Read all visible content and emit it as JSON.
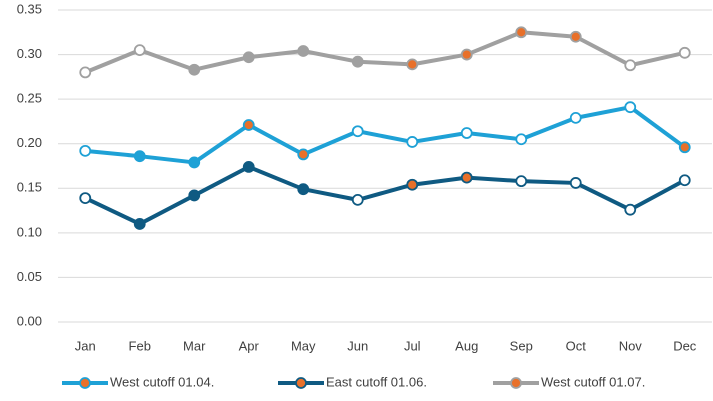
{
  "chart_data": {
    "type": "line",
    "categories": [
      "Jan",
      "Feb",
      "Mar",
      "Apr",
      "May",
      "Jun",
      "Jul",
      "Aug",
      "Sep",
      "Oct",
      "Nov",
      "Dec"
    ],
    "ylim": [
      0,
      0.35
    ],
    "yticks": [
      {
        "value": 0,
        "label": "0.00"
      },
      {
        "value": 0.05,
        "label": "0.05"
      },
      {
        "value": 0.1,
        "label": "0.10"
      },
      {
        "value": 0.15,
        "label": "0.15"
      },
      {
        "value": 0.2,
        "label": "0.20"
      },
      {
        "value": 0.25,
        "label": "0.25"
      },
      {
        "value": 0.3,
        "label": "0.30"
      },
      {
        "value": 0.35,
        "label": "0.35"
      }
    ],
    "grid": true,
    "legend": "bottom",
    "series": [
      {
        "name": "West cutoff 01.04.",
        "color": "#1ea1d6",
        "legend_marker_fill": "#e8702a",
        "values": [
          0.192,
          0.186,
          0.179,
          0.221,
          0.188,
          0.214,
          0.202,
          0.212,
          0.205,
          0.229,
          0.241,
          0.196
        ],
        "marker_fills": [
          "#ffffff",
          "#1ea1d6",
          "#1ea1d6",
          "#e8702a",
          "#e8702a",
          "#ffffff",
          "#ffffff",
          "#ffffff",
          "#ffffff",
          "#ffffff",
          "#ffffff",
          "#e8702a"
        ]
      },
      {
        "name": "East cutoff 01.06.",
        "color": "#0f5a82",
        "legend_marker_fill": "#e8702a",
        "values": [
          0.139,
          0.11,
          0.142,
          0.174,
          0.149,
          0.137,
          0.154,
          0.162,
          0.158,
          0.156,
          0.126,
          0.159
        ],
        "marker_fills": [
          "#ffffff",
          "#0f5a82",
          "#0f5a82",
          "#0f5a82",
          "#0f5a82",
          "#ffffff",
          "#e8702a",
          "#e8702a",
          "#ffffff",
          "#ffffff",
          "#ffffff",
          "#ffffff"
        ]
      },
      {
        "name": "West cutoff 01.07.",
        "color": "#a0a0a0",
        "legend_marker_fill": "#e8702a",
        "values": [
          0.28,
          0.305,
          0.283,
          0.297,
          0.304,
          0.292,
          0.289,
          0.3,
          0.325,
          0.32,
          0.288,
          0.302
        ],
        "marker_fills": [
          "#ffffff",
          "#ffffff",
          "#a0a0a0",
          "#a0a0a0",
          "#a0a0a0",
          "#a0a0a0",
          "#e8702a",
          "#e8702a",
          "#e8702a",
          "#e8702a",
          "#ffffff",
          "#ffffff"
        ]
      }
    ]
  }
}
